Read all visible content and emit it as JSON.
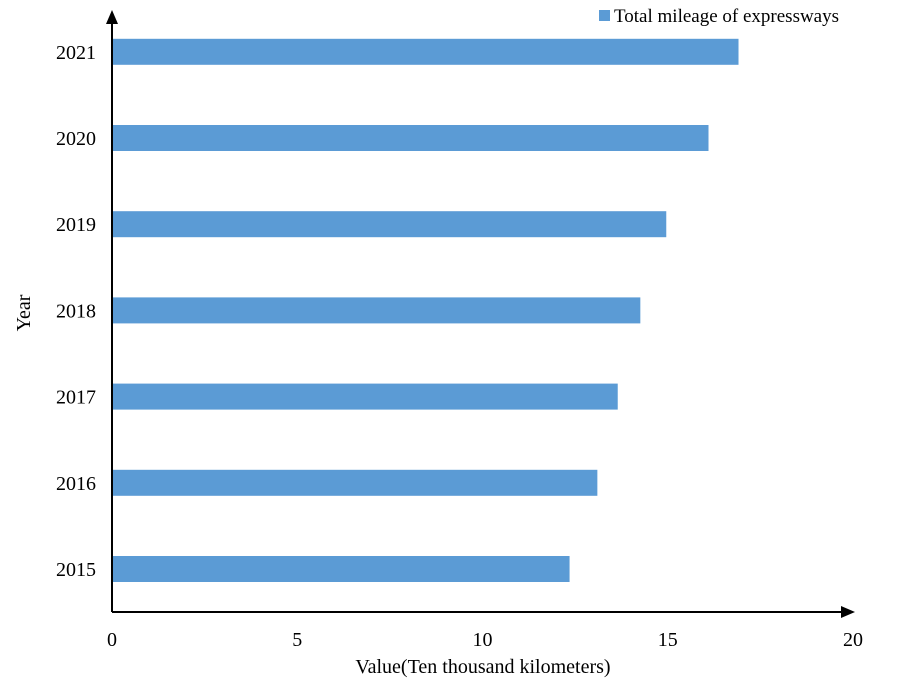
{
  "chart_data": {
    "type": "bar",
    "orientation": "horizontal",
    "categories": [
      "2015",
      "2016",
      "2017",
      "2018",
      "2019",
      "2020",
      "2021"
    ],
    "series": [
      {
        "name": "Total mileage of expressways",
        "values": [
          12.35,
          13.1,
          13.65,
          14.26,
          14.96,
          16.1,
          16.91
        ]
      }
    ],
    "xlabel": "Value(Ten thousand kilometers)",
    "ylabel": "Year",
    "xlim": [
      0,
      20
    ],
    "xticks": [
      "0",
      "5",
      "10",
      "15",
      "20"
    ],
    "grid": false,
    "legend_position": "top-right",
    "colors": {
      "bar": "#5B9BD5",
      "axis": "#000000"
    }
  }
}
